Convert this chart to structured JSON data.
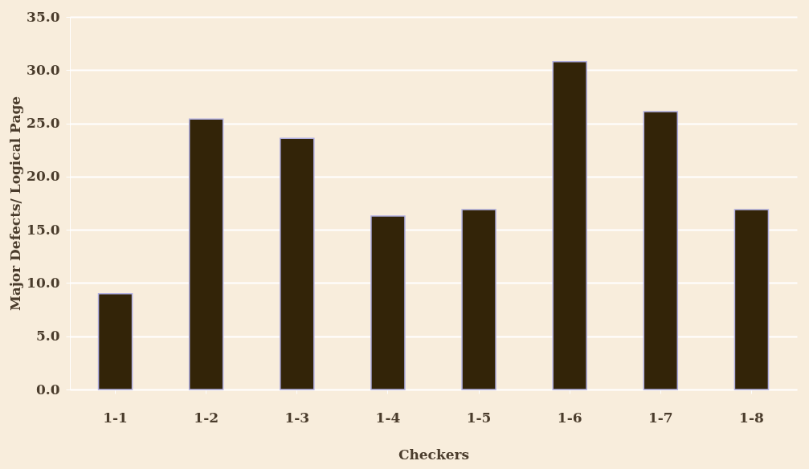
{
  "chart_data": {
    "type": "bar",
    "xlabel": "Checkers",
    "ylabel": "Major Defects/ Logical Page",
    "categories": [
      "1-1",
      "1-2",
      "1-3",
      "1-4",
      "1-5",
      "1-6",
      "1-7",
      "1-8"
    ],
    "values": [
      9.0,
      25.4,
      23.6,
      16.3,
      16.9,
      30.8,
      26.1,
      16.9
    ],
    "color": "#332408",
    "ylim": [
      0,
      35
    ],
    "yticks": [
      {
        "value": 0,
        "label": "0.0"
      },
      {
        "value": 5,
        "label": "5.0"
      },
      {
        "value": 10,
        "label": "10.0"
      },
      {
        "value": 15,
        "label": "15.0"
      },
      {
        "value": 20,
        "label": "20.0"
      },
      {
        "value": 25,
        "label": "25.0"
      },
      {
        "value": 30,
        "label": "30.0"
      },
      {
        "value": 35,
        "label": "35.0"
      }
    ],
    "grid": "y"
  }
}
